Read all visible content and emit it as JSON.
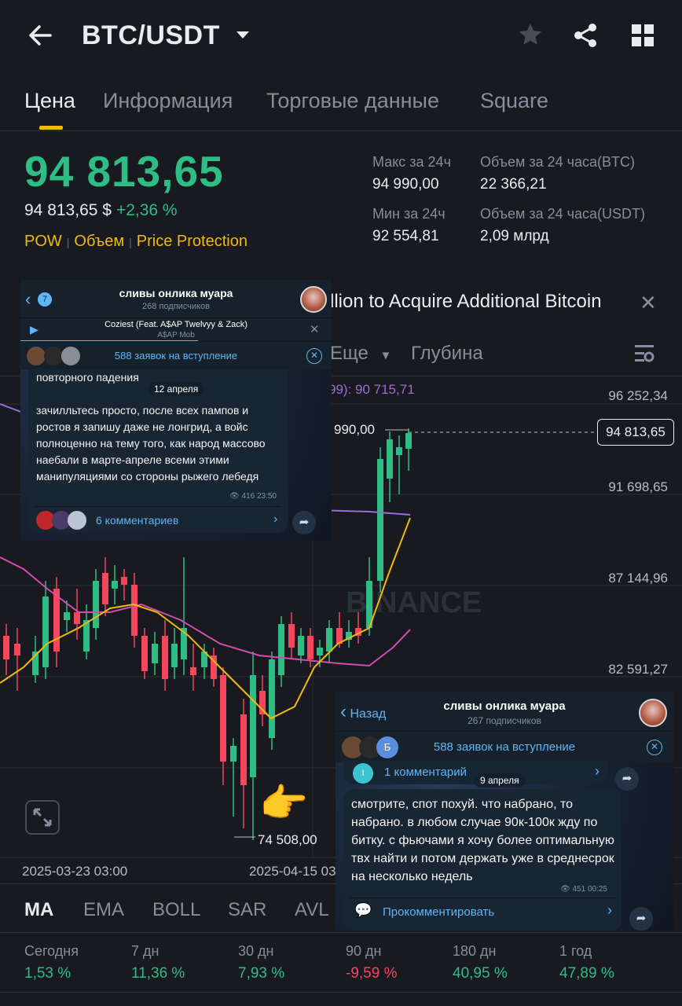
{
  "header": {
    "pair": "BTC/USDT"
  },
  "tabs": [
    {
      "label": "Цена",
      "active": true
    },
    {
      "label": "Информация",
      "active": false
    },
    {
      "label": "Торговые данные",
      "active": false
    },
    {
      "label": "Square",
      "active": false
    }
  ],
  "price": {
    "last": "94 813,65",
    "usd": "94 813,65 $",
    "change": "+2,36 %",
    "tags": [
      "POW",
      "Объем",
      "Price Protection"
    ]
  },
  "stats": {
    "high_label": "Макс за 24ч",
    "high": "94 990,00",
    "low_label": "Мин за 24ч",
    "low": "92 554,81",
    "vol_btc_label": "Объем за 24 часа(BTC)",
    "vol_btc": "22 366,21",
    "vol_usdt_label": "Объем за 24 часа(USDT)",
    "vol_usdt": "2,09 млрд"
  },
  "news": {
    "text": "llion to Acquire Additional Bitcoin"
  },
  "chart_toolbar": {
    "more": "Еще",
    "depth": "Глубина"
  },
  "chart": {
    "ma_label": "99): 90 715,71",
    "high_marker": "990,00",
    "low_marker": "74 508,00",
    "current_price": "94 813,65",
    "watermark": "BINANCE",
    "y_ticks": [
      "96 252,34",
      "91 698,65",
      "87 144,96",
      "82 591,27"
    ],
    "x_ticks": [
      "2025-03-23 03:00",
      "2025-04-15 03"
    ]
  },
  "indicators": [
    "MA",
    "EMA",
    "BOLL",
    "SAR",
    "AVL"
  ],
  "performance": [
    {
      "label": "Сегодня",
      "value": "1,53 %",
      "dir": "pos"
    },
    {
      "label": "7 дн",
      "value": "11,36 %",
      "dir": "pos"
    },
    {
      "label": "30 дн",
      "value": "7,93 %",
      "dir": "pos"
    },
    {
      "label": "90 дн",
      "value": "-9,59 %",
      "dir": "neg"
    },
    {
      "label": "180 дн",
      "value": "40,95 %",
      "dir": "pos"
    },
    {
      "label": "1 год",
      "value": "47,89 %",
      "dir": "pos"
    }
  ],
  "tg1": {
    "back_count": "7",
    "title": "сливы онлика муара",
    "subscribers": "268 подписчиков",
    "song": "Coziest (Feat. A$AP Twelvyy & Zack)",
    "artist": "A$AP Mob",
    "join_requests": "588 заявок на вступление",
    "partial_text": "повторного падения",
    "date": "12 апреля",
    "message": "зачилльтесь просто, после всех пампов и ростов я запишу даже не лонгрид, а войс полноценно на тему того, как народ массово наебали в марте-апреле всеми этими манипуляциями со стороны рыжего лебедя",
    "meta": "416 23:50",
    "comments": "6 комментариев"
  },
  "tg2": {
    "back": "Назад",
    "title": "сливы онлика муара",
    "subscribers": "267 подписчиков",
    "join_requests": "588 заявок на вступление",
    "prev_comment": "1 комментарий",
    "date": "9 апреля",
    "avatar_letter": "Б",
    "comment_avatar_letter": "I",
    "message": "смотрите, спот похуй. что набрано, то набрано. в любом случае 90к-100к жду по битку. с фьючами я хочу более оптимальную твх найти и потом держать уже в среднесрок на несколько недель",
    "meta": "451 00:25",
    "comment_btn": "Прокомментировать"
  },
  "emoji": "👉",
  "colors": {
    "up": "#2ebd85",
    "down": "#f6465d",
    "accent": "#f0b90b",
    "ma7": "#f0b90b",
    "ma25": "#d14bb0",
    "ma99": "#9b6cd8"
  }
}
